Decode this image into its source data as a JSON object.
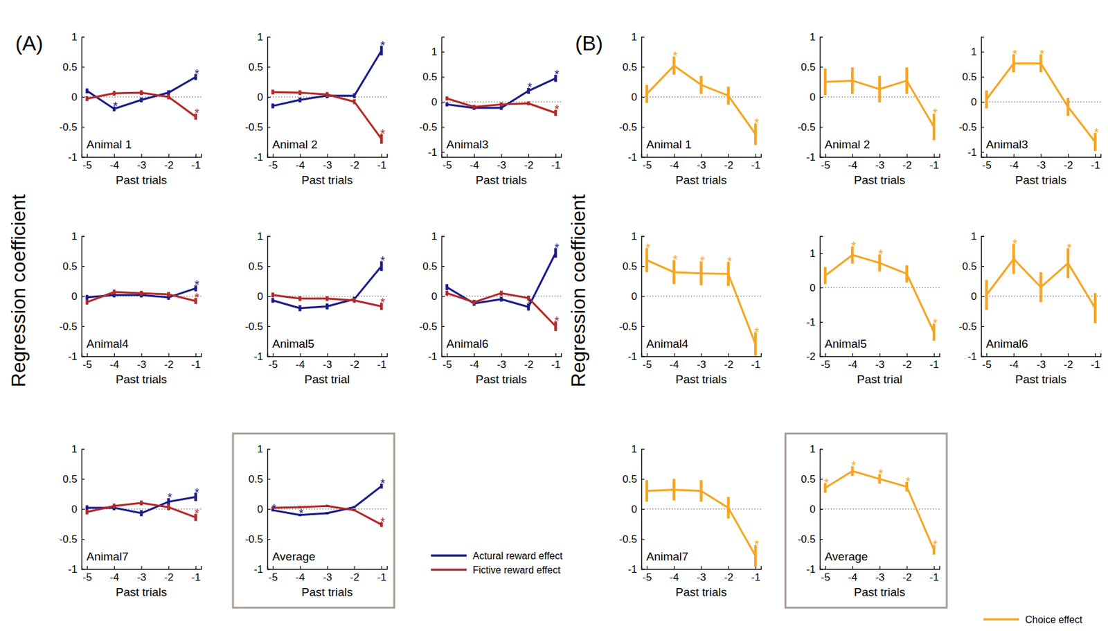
{
  "chart_data": [
    {
      "type": "line",
      "panel": "(A)",
      "ylabel": "Regression coefficient",
      "title": "Animal 1",
      "xlabel": "Past trials",
      "x": [
        -5,
        -4,
        -3,
        -2,
        -1
      ],
      "xlim": [
        -5.2,
        -0.8
      ],
      "xticks": [
        -5,
        -4,
        -3,
        -2,
        -1
      ],
      "ylim": [
        -1,
        1
      ],
      "yticks": [
        -1,
        -0.5,
        0,
        0.5,
        1
      ],
      "hline": 0,
      "series": [
        {
          "color": "#1c1c8a",
          "values": [
            0.1,
            -0.2,
            -0.05,
            0.07,
            0.33
          ],
          "errors": [
            0.04,
            0.04,
            0.04,
            0.04,
            0.05
          ],
          "stars": [
            null,
            "*",
            null,
            null,
            "*"
          ]
        },
        {
          "color": "#b22a2a",
          "values": [
            -0.03,
            0.06,
            0.07,
            0,
            -0.33
          ],
          "errors": [
            0.04,
            0.04,
            0.04,
            0.04,
            0.05
          ],
          "stars": [
            null,
            null,
            null,
            null,
            "*"
          ]
        }
      ]
    },
    {
      "type": "line",
      "title": "Animal 2",
      "xlabel": "Past trials",
      "x": [
        -5,
        -4,
        -3,
        -2,
        -1
      ],
      "xlim": [
        -5.2,
        -0.8
      ],
      "xticks": [
        -5,
        -4,
        -3,
        -2,
        -1
      ],
      "ylim": [
        -1,
        1
      ],
      "yticks": [
        -1,
        -0.5,
        0,
        0.5,
        1
      ],
      "hline": 0,
      "series": [
        {
          "color": "#1c1c8a",
          "values": [
            -0.15,
            -0.05,
            0.02,
            0.02,
            0.77
          ],
          "errors": [
            0.04,
            0.04,
            0.04,
            0.04,
            0.08
          ],
          "stars": [
            null,
            null,
            null,
            null,
            "*"
          ]
        },
        {
          "color": "#b22a2a",
          "values": [
            0.08,
            0.07,
            0.04,
            -0.08,
            -0.7
          ],
          "errors": [
            0.04,
            0.04,
            0.04,
            0.04,
            0.08
          ],
          "stars": [
            null,
            null,
            null,
            null,
            "*"
          ]
        }
      ]
    },
    {
      "type": "line",
      "title": "Animal3",
      "xlabel": "Past trials",
      "x": [
        -5,
        -4,
        -3,
        -2,
        -1
      ],
      "xlim": [
        -5.2,
        -0.8
      ],
      "xticks": [
        -5,
        -4,
        -3,
        -2,
        -1
      ],
      "ylim": [
        -1.1,
        1.3
      ],
      "yticks": [
        -1,
        -0.5,
        0,
        0.5,
        1
      ],
      "hline": 0,
      "series": [
        {
          "color": "#1c1c8a",
          "values": [
            -0.05,
            -0.12,
            -0.12,
            0.22,
            0.47
          ],
          "errors": [
            0.04,
            0.04,
            0.04,
            0.06,
            0.07
          ],
          "stars": [
            null,
            null,
            null,
            "*",
            "*"
          ]
        },
        {
          "color": "#b22a2a",
          "values": [
            0.07,
            -0.1,
            -0.05,
            -0.03,
            -0.22
          ],
          "errors": [
            0.04,
            0.04,
            0.04,
            0.04,
            0.06
          ],
          "stars": [
            null,
            null,
            null,
            null,
            "*"
          ]
        }
      ]
    },
    {
      "type": "line",
      "title": "Animal4",
      "xlabel": "Past trials",
      "x": [
        -5,
        -4,
        -3,
        -2,
        -1
      ],
      "xlim": [
        -5.2,
        -0.8
      ],
      "xticks": [
        -5,
        -4,
        -3,
        -2,
        -1
      ],
      "ylim": [
        -1,
        1
      ],
      "yticks": [
        -1,
        -0.5,
        0,
        0.5,
        1
      ],
      "hline": 0,
      "series": [
        {
          "color": "#1c1c8a",
          "values": [
            -0.02,
            0.02,
            0.02,
            -0.02,
            0.13
          ],
          "errors": [
            0.04,
            0.04,
            0.04,
            0.04,
            0.05
          ],
          "stars": [
            null,
            null,
            null,
            null,
            "*"
          ]
        },
        {
          "color": "#b22a2a",
          "values": [
            -0.1,
            0.07,
            0.05,
            0.03,
            -0.08
          ],
          "errors": [
            0.04,
            0.04,
            0.04,
            0.04,
            0.05
          ],
          "stars": [
            null,
            null,
            null,
            null,
            "*"
          ]
        }
      ]
    },
    {
      "type": "line",
      "title": "Animal5",
      "xlabel": "Past trial",
      "x": [
        -5,
        -4,
        -3,
        -2,
        -1
      ],
      "xlim": [
        -5.2,
        -0.8
      ],
      "xticks": [
        -5,
        -4,
        -3,
        -2,
        -1
      ],
      "ylim": [
        -1,
        1
      ],
      "yticks": [
        -1,
        -0.5,
        0,
        0.5,
        1
      ],
      "hline": 0,
      "series": [
        {
          "color": "#1c1c8a",
          "values": [
            -0.07,
            -0.2,
            -0.17,
            -0.05,
            0.5
          ],
          "errors": [
            0.04,
            0.05,
            0.05,
            0.04,
            0.08
          ],
          "stars": [
            null,
            null,
            null,
            null,
            "*"
          ]
        },
        {
          "color": "#b22a2a",
          "values": [
            0.02,
            -0.04,
            -0.04,
            -0.07,
            -0.17
          ],
          "errors": [
            0.04,
            0.04,
            0.04,
            0.04,
            0.06
          ],
          "stars": [
            null,
            null,
            null,
            null,
            "*"
          ]
        }
      ]
    },
    {
      "type": "line",
      "title": "Animal6",
      "xlabel": "Past trials",
      "x": [
        -5,
        -4,
        -3,
        -2,
        -1
      ],
      "xlim": [
        -5.2,
        -0.8
      ],
      "xticks": [
        -5,
        -4,
        -3,
        -2,
        -1
      ],
      "ylim": [
        -1,
        1
      ],
      "yticks": [
        -1,
        -0.5,
        0,
        0.5,
        1
      ],
      "hline": 0,
      "series": [
        {
          "color": "#1c1c8a",
          "values": [
            0.15,
            -0.12,
            -0.05,
            -0.18,
            0.72
          ],
          "errors": [
            0.05,
            0.04,
            0.04,
            0.06,
            0.08
          ],
          "stars": [
            null,
            null,
            null,
            "*",
            "*"
          ]
        },
        {
          "color": "#b22a2a",
          "values": [
            0.05,
            -0.1,
            0.05,
            -0.03,
            -0.5
          ],
          "errors": [
            0.04,
            0.04,
            0.04,
            0.04,
            0.08
          ],
          "stars": [
            null,
            null,
            null,
            null,
            "*"
          ]
        }
      ]
    },
    {
      "type": "line",
      "title": "Animal7",
      "xlabel": "Past trials",
      "x": [
        -5,
        -4,
        -3,
        -2,
        -1
      ],
      "xlim": [
        -5.2,
        -0.8
      ],
      "xticks": [
        -5,
        -4,
        -3,
        -2,
        -1
      ],
      "ylim": [
        -1,
        1
      ],
      "yticks": [
        -1,
        -0.5,
        0,
        0.5,
        1
      ],
      "hline": 0,
      "series": [
        {
          "color": "#1c1c8a",
          "values": [
            0.02,
            0.02,
            -0.07,
            0.12,
            0.2
          ],
          "errors": [
            0.04,
            0.04,
            0.05,
            0.06,
            0.07
          ],
          "stars": [
            null,
            null,
            null,
            "*",
            "*"
          ]
        },
        {
          "color": "#b22a2a",
          "values": [
            -0.05,
            0.05,
            0.1,
            0.03,
            -0.14
          ],
          "errors": [
            0.04,
            0.04,
            0.04,
            0.05,
            0.06
          ],
          "stars": [
            null,
            null,
            null,
            null,
            "*"
          ]
        }
      ]
    },
    {
      "type": "line",
      "title": "Average",
      "xlabel": "Past trials",
      "legend": "right",
      "x": [
        -5,
        -4,
        -3,
        -2,
        -1
      ],
      "xlim": [
        -5.2,
        -0.8
      ],
      "xticks": [
        -5,
        -4,
        -3,
        -2,
        -1
      ],
      "ylim": [
        -1,
        1
      ],
      "yticks": [
        -1,
        -0.5,
        0,
        0.5,
        1
      ],
      "hline": 0,
      "series": [
        {
          "name": "Actural reward effect",
          "color": "#1c1c8a",
          "values": [
            -0.02,
            -0.1,
            -0.07,
            0.03,
            0.38
          ],
          "errors": [
            0.02,
            0.02,
            0.02,
            0.02,
            0.04
          ],
          "stars": [
            "*",
            "*",
            null,
            null,
            "*"
          ]
        },
        {
          "name": "Fictive reward effect",
          "color": "#b22a2a",
          "values": [
            0.02,
            0.03,
            0.05,
            -0.02,
            -0.26
          ],
          "errors": [
            0.02,
            0.02,
            0.02,
            0.02,
            0.04
          ],
          "stars": [
            null,
            null,
            null,
            null,
            "*"
          ]
        }
      ]
    },
    {
      "type": "line",
      "panel": "(B)",
      "ylabel": "Regression coefficient",
      "title": "Animal 1",
      "xlabel": "Past trials",
      "x": [
        -5,
        -4,
        -3,
        -2,
        -1
      ],
      "xlim": [
        -5.2,
        -0.8
      ],
      "xticks": [
        -5,
        -4,
        -3,
        -2,
        -1
      ],
      "ylim": [
        -1,
        1
      ],
      "yticks": [
        -1,
        -0.5,
        0,
        0.5,
        1
      ],
      "hline": 0,
      "series": [
        {
          "color": "#f5a623",
          "values": [
            0.05,
            0.52,
            0.2,
            0.02,
            -0.62
          ],
          "errors": [
            0.15,
            0.15,
            0.15,
            0.15,
            0.18
          ],
          "stars": [
            null,
            "*",
            null,
            null,
            "*"
          ]
        }
      ]
    },
    {
      "type": "line",
      "title": "Animal 2",
      "xlabel": "Past trials",
      "x": [
        -5,
        -4,
        -3,
        -2,
        -1
      ],
      "xlim": [
        -5.2,
        -0.8
      ],
      "xticks": [
        -5,
        -4,
        -3,
        -2,
        -1
      ],
      "ylim": [
        -1,
        1
      ],
      "yticks": [
        -1,
        -0.5,
        0,
        0.5,
        1
      ],
      "hline": 0,
      "series": [
        {
          "color": "#f5a623",
          "values": [
            0.25,
            0.27,
            0.13,
            0.27,
            -0.5
          ],
          "errors": [
            0.22,
            0.22,
            0.22,
            0.22,
            0.22
          ],
          "stars": [
            null,
            null,
            null,
            null,
            "*"
          ]
        }
      ]
    },
    {
      "type": "line",
      "title": "Animal3",
      "xlabel": "Past trials",
      "x": [
        -5,
        -4,
        -3,
        -2,
        -1
      ],
      "xlim": [
        -5.2,
        -0.8
      ],
      "xticks": [
        -5,
        -4,
        -3,
        -2,
        -1
      ],
      "ylim": [
        -1.1,
        1.3
      ],
      "yticks": [
        -1,
        -0.5,
        0,
        0.5,
        1
      ],
      "hline": 0,
      "series": [
        {
          "color": "#f5a623",
          "values": [
            0.05,
            0.77,
            0.77,
            -0.1,
            -0.8
          ],
          "errors": [
            0.18,
            0.18,
            0.18,
            0.18,
            0.18
          ],
          "stars": [
            null,
            "*",
            "*",
            null,
            "*"
          ]
        }
      ]
    },
    {
      "type": "line",
      "title": "Animal4",
      "xlabel": "Past trials",
      "x": [
        -5,
        -4,
        -3,
        -2,
        -1
      ],
      "xlim": [
        -5.2,
        -0.8
      ],
      "xticks": [
        -5,
        -4,
        -3,
        -2,
        -1
      ],
      "ylim": [
        -1,
        1
      ],
      "yticks": [
        -1,
        -0.5,
        0,
        0.5,
        1
      ],
      "hline": 0,
      "series": [
        {
          "color": "#f5a623",
          "values": [
            0.6,
            0.4,
            0.38,
            0.37,
            -0.8
          ],
          "errors": [
            0.2,
            0.2,
            0.2,
            0.2,
            0.2
          ],
          "stars": [
            "*",
            "*",
            "*",
            "*",
            "*"
          ]
        }
      ]
    },
    {
      "type": "line",
      "title": "Animal5",
      "xlabel": "Past trial",
      "x": [
        -5,
        -4,
        -3,
        -2,
        -1
      ],
      "xlim": [
        -5.2,
        -0.8
      ],
      "xticks": [
        -5,
        -4,
        -3,
        -2,
        -1
      ],
      "ylim": [
        -2,
        1.5
      ],
      "yticks": [
        -2,
        -1,
        0,
        1
      ],
      "hline": 0,
      "series": [
        {
          "color": "#f5a623",
          "values": [
            0.35,
            0.95,
            0.72,
            0.4,
            -1.3
          ],
          "errors": [
            0.25,
            0.25,
            0.25,
            0.25,
            0.25
          ],
          "stars": [
            null,
            "*",
            "*",
            null,
            "*"
          ]
        }
      ]
    },
    {
      "type": "line",
      "title": "Animal6",
      "xlabel": "Past trials",
      "x": [
        -5,
        -4,
        -3,
        -2,
        -1
      ],
      "xlim": [
        -5.2,
        -0.8
      ],
      "xticks": [
        -5,
        -4,
        -3,
        -2,
        -1
      ],
      "ylim": [
        -1,
        1
      ],
      "yticks": [
        -1,
        -0.5,
        0,
        0.5,
        1
      ],
      "hline": 0,
      "series": [
        {
          "color": "#f5a623",
          "values": [
            0.02,
            0.62,
            0.15,
            0.55,
            -0.2
          ],
          "errors": [
            0.25,
            0.25,
            0.25,
            0.25,
            0.25
          ],
          "stars": [
            null,
            "*",
            null,
            "*",
            null
          ]
        }
      ]
    },
    {
      "type": "line",
      "title": "Animal7",
      "xlabel": "Past trials",
      "x": [
        -5,
        -4,
        -3,
        -2,
        -1
      ],
      "xlim": [
        -5.2,
        -0.8
      ],
      "xticks": [
        -5,
        -4,
        -3,
        -2,
        -1
      ],
      "ylim": [
        -1,
        1
      ],
      "yticks": [
        -1,
        -0.5,
        0,
        0.5,
        1
      ],
      "hline": 0,
      "series": [
        {
          "color": "#f5a623",
          "values": [
            0.3,
            0.32,
            0.3,
            0.02,
            -0.78
          ],
          "errors": [
            0.18,
            0.18,
            0.18,
            0.18,
            0.18
          ],
          "stars": [
            null,
            null,
            null,
            null,
            "*"
          ]
        }
      ]
    },
    {
      "type": "line",
      "title": "Average",
      "xlabel": "Past trials",
      "legend": "bottom right",
      "x": [
        -5,
        -4,
        -3,
        -2,
        -1
      ],
      "xlim": [
        -5.2,
        -0.8
      ],
      "xticks": [
        -5,
        -4,
        -3,
        -2,
        -1
      ],
      "ylim": [
        -1,
        1
      ],
      "yticks": [
        -1,
        -0.5,
        0,
        0.5,
        1
      ],
      "hline": 0,
      "series": [
        {
          "name": "Choice effect",
          "color": "#f5a623",
          "values": [
            0.35,
            0.63,
            0.5,
            0.37,
            -0.68
          ],
          "errors": [
            0.08,
            0.08,
            0.08,
            0.08,
            0.08
          ],
          "stars": [
            "*",
            "*",
            "*",
            "*",
            "*"
          ]
        }
      ]
    }
  ]
}
